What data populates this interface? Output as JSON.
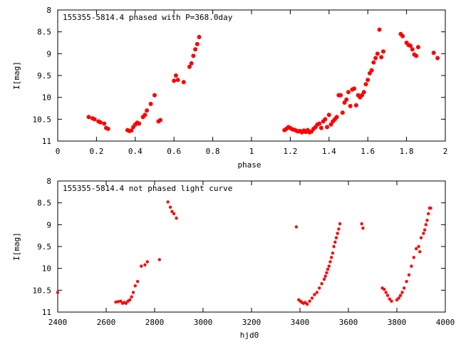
{
  "chart_data": [
    {
      "type": "scatter",
      "title": "155355-5814.4 phased with P=368.0day",
      "xlabel": "phase",
      "ylabel": "I[mag]",
      "xlim": [
        0,
        2
      ],
      "ylim": [
        8,
        11
      ],
      "y_inverted": true,
      "x_ticks": [
        "0",
        "0.2",
        "0.4",
        "0.6",
        "0.8",
        "1",
        "1.2",
        "1.4",
        "1.6",
        "1.8",
        "2"
      ],
      "y_ticks": [
        "8",
        "8.5",
        "9",
        "9.5",
        "10",
        "10.5",
        "11"
      ],
      "grid": false,
      "marker": "filled-circle",
      "color": "#ff0000",
      "series": [
        {
          "x": [
            0.16,
            0.18,
            0.19,
            0.21,
            0.22,
            0.24,
            0.25,
            0.26,
            0.36,
            0.37,
            0.38,
            0.39,
            0.4,
            0.41,
            0.42,
            0.44,
            0.45,
            0.46,
            0.48,
            0.5,
            0.52,
            0.53,
            0.6,
            0.61,
            0.62,
            0.65,
            0.68,
            0.69,
            0.7,
            0.71,
            0.72,
            0.73,
            1.17,
            1.18,
            1.19,
            1.2,
            1.21,
            1.22,
            1.23,
            1.24,
            1.25,
            1.26,
            1.27,
            1.28,
            1.29,
            1.3,
            1.31,
            1.32,
            1.33,
            1.34,
            1.35,
            1.36,
            1.37,
            1.38,
            1.39,
            1.4,
            1.41,
            1.42,
            1.43,
            1.44,
            1.45,
            1.46,
            1.47,
            1.48,
            1.49,
            1.5,
            1.51,
            1.52,
            1.53,
            1.54,
            1.55,
            1.56,
            1.57,
            1.58,
            1.59,
            1.6,
            1.61,
            1.62,
            1.63,
            1.64,
            1.65,
            1.66,
            1.67,
            1.68,
            1.77,
            1.78,
            1.8,
            1.81,
            1.82,
            1.83,
            1.84,
            1.85,
            1.86,
            1.94,
            1.96
          ],
          "y": [
            10.45,
            10.48,
            10.5,
            10.55,
            10.57,
            10.6,
            10.7,
            10.72,
            10.75,
            10.77,
            10.76,
            10.68,
            10.62,
            10.58,
            10.6,
            10.45,
            10.4,
            10.3,
            10.15,
            9.95,
            10.55,
            10.52,
            9.62,
            9.5,
            9.6,
            9.65,
            9.3,
            9.22,
            9.05,
            8.9,
            8.78,
            8.62,
            10.75,
            10.72,
            10.68,
            10.7,
            10.73,
            10.74,
            10.76,
            10.78,
            10.77,
            10.8,
            10.76,
            10.79,
            10.75,
            10.8,
            10.78,
            10.72,
            10.68,
            10.62,
            10.6,
            10.7,
            10.55,
            10.5,
            10.68,
            10.4,
            10.62,
            10.55,
            10.5,
            10.45,
            9.95,
            9.95,
            10.35,
            10.12,
            10.05,
            9.88,
            10.2,
            9.82,
            9.8,
            10.18,
            9.95,
            10.0,
            9.95,
            9.88,
            9.7,
            9.6,
            9.45,
            9.38,
            9.2,
            9.1,
            9.0,
            8.45,
            9.08,
            8.95,
            8.55,
            8.6,
            8.75,
            8.8,
            8.82,
            8.9,
            9.02,
            9.05,
            8.85,
            8.98,
            9.1
          ]
        }
      ]
    },
    {
      "type": "scatter",
      "title": "155355-5814.4 not phased light curve",
      "xlabel": "hjd0",
      "ylabel": "I[mag]",
      "xlim": [
        2400,
        4000
      ],
      "ylim": [
        8,
        11
      ],
      "y_inverted": true,
      "x_ticks": [
        "2400",
        "2600",
        "2800",
        "3000",
        "3200",
        "3400",
        "3600",
        "3800",
        "4000"
      ],
      "y_ticks": [
        "8",
        "8.5",
        "9",
        "9.5",
        "10",
        "10.5",
        "11"
      ],
      "grid": false,
      "marker": "filled-circle",
      "color": "#ff0000",
      "series": [
        {
          "x": [
            2400,
            2640,
            2650,
            2660,
            2668,
            2675,
            2682,
            2690,
            2698,
            2705,
            2712,
            2720,
            2730,
            2745,
            2760,
            2770,
            2820,
            2855,
            2865,
            2872,
            2880,
            2890,
            3385,
            3395,
            3402,
            3408,
            3415,
            3422,
            3430,
            3440,
            3450,
            3460,
            3470,
            3480,
            3490,
            3500,
            3505,
            3510,
            3515,
            3520,
            3525,
            3530,
            3535,
            3540,
            3545,
            3550,
            3555,
            3560,
            3565,
            3655,
            3660,
            3740,
            3748,
            3755,
            3762,
            3770,
            3778,
            3800,
            3808,
            3815,
            3822,
            3830,
            3840,
            3850,
            3860,
            3870,
            3880,
            3890,
            3895,
            3900,
            3910,
            3915,
            3920,
            3925,
            3930,
            3935,
            3940
          ],
          "y": [
            10.55,
            10.77,
            10.76,
            10.75,
            10.8,
            10.78,
            10.8,
            10.75,
            10.72,
            10.65,
            10.55,
            10.4,
            10.3,
            9.95,
            9.92,
            9.85,
            9.8,
            8.48,
            8.6,
            8.7,
            8.75,
            8.85,
            9.05,
            10.72,
            10.75,
            10.78,
            10.8,
            10.78,
            10.82,
            10.75,
            10.68,
            10.6,
            10.55,
            10.45,
            10.35,
            10.25,
            10.18,
            10.1,
            10.02,
            9.95,
            9.85,
            9.75,
            9.65,
            9.5,
            9.4,
            9.3,
            9.2,
            9.1,
            8.98,
            8.98,
            9.08,
            10.45,
            10.48,
            10.55,
            10.62,
            10.7,
            10.75,
            10.72,
            10.68,
            10.62,
            10.55,
            10.45,
            10.3,
            10.15,
            9.95,
            9.75,
            9.55,
            9.5,
            9.62,
            9.3,
            9.2,
            9.12,
            9.0,
            8.9,
            8.75,
            8.62,
            8.62
          ]
        }
      ]
    }
  ]
}
